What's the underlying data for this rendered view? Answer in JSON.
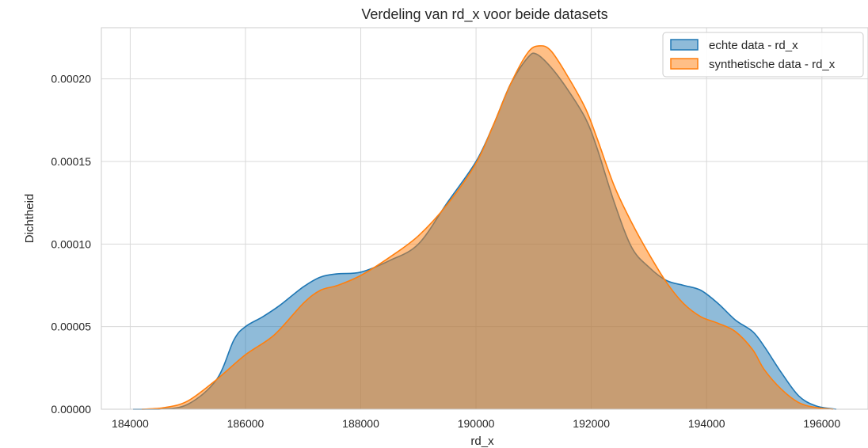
{
  "chart_data": {
    "type": "area",
    "title": "Verdeling van rd_x voor beide datasets",
    "xlabel": "rd_x",
    "ylabel": "Dichtheid",
    "xlim": [
      183500,
      196800
    ],
    "ylim": [
      0,
      0.000231
    ],
    "xticks": [
      184000,
      186000,
      188000,
      190000,
      192000,
      194000,
      196000
    ],
    "xtick_labels": [
      "184000",
      "186000",
      "188000",
      "190000",
      "192000",
      "194000",
      "196000"
    ],
    "yticks": [
      0,
      5e-05,
      0.0001,
      0.00015,
      0.0002
    ],
    "ytick_labels": [
      "0.00000",
      "0.00005",
      "0.00010",
      "0.00015",
      "0.00020"
    ],
    "grid": true,
    "legend_position": "top-right",
    "series": [
      {
        "name": "echte data - rd_x",
        "color": "#1f77b4",
        "x": [
          184050,
          184500,
          185000,
          185500,
          185800,
          186000,
          186300,
          186600,
          187000,
          187300,
          187600,
          188000,
          188500,
          189000,
          189500,
          190000,
          190300,
          190600,
          190900,
          191050,
          191300,
          191600,
          191900,
          192100,
          192400,
          192700,
          193000,
          193300,
          193600,
          193900,
          194200,
          194500,
          194800,
          195000,
          195300,
          195600,
          195900,
          196250
        ],
        "y": [
          0.0,
          0.0,
          3e-06,
          1.8e-05,
          4.2e-05,
          5e-05,
          5.6e-05,
          6.3e-05,
          7.4e-05,
          8e-05,
          8.2e-05,
          8.3e-05,
          9e-05,
          0.0001,
          0.000125,
          0.00015,
          0.000172,
          0.000197,
          0.000213,
          0.000215,
          0.000207,
          0.000193,
          0.000176,
          0.000158,
          0.000125,
          9.8e-05,
          8.6e-05,
          7.8e-05,
          7.5e-05,
          7.2e-05,
          6.4e-05,
          5.4e-05,
          4.7e-05,
          3.8e-05,
          2.2e-05,
          8e-06,
          2e-06,
          0.0
        ]
      },
      {
        "name": "synthetische data - rd_x",
        "color": "#ff7f0e",
        "x": [
          184200,
          184600,
          185000,
          185500,
          186000,
          186500,
          187000,
          187300,
          187600,
          188000,
          188500,
          189000,
          189500,
          190000,
          190300,
          190600,
          190900,
          191100,
          191300,
          191600,
          191900,
          192100,
          192400,
          192700,
          193000,
          193300,
          193600,
          193900,
          194200,
          194500,
          194800,
          195000,
          195300,
          195600,
          195900,
          196200
        ],
        "y": [
          0.0,
          1e-06,
          5e-06,
          1.8e-05,
          3.3e-05,
          4.5e-05,
          6.4e-05,
          7.2e-05,
          7.5e-05,
          8.1e-05,
          9.2e-05,
          0.000105,
          0.000124,
          0.000149,
          0.000172,
          0.000197,
          0.000216,
          0.00022,
          0.000217,
          0.000201,
          0.000182,
          0.000164,
          0.000135,
          0.000113,
          9.4e-05,
          7.7e-05,
          6.4e-05,
          5.6e-05,
          5.2e-05,
          4.7e-05,
          3.6e-05,
          2.4e-05,
          1.2e-05,
          4e-06,
          1e-06,
          0.0
        ]
      }
    ]
  }
}
